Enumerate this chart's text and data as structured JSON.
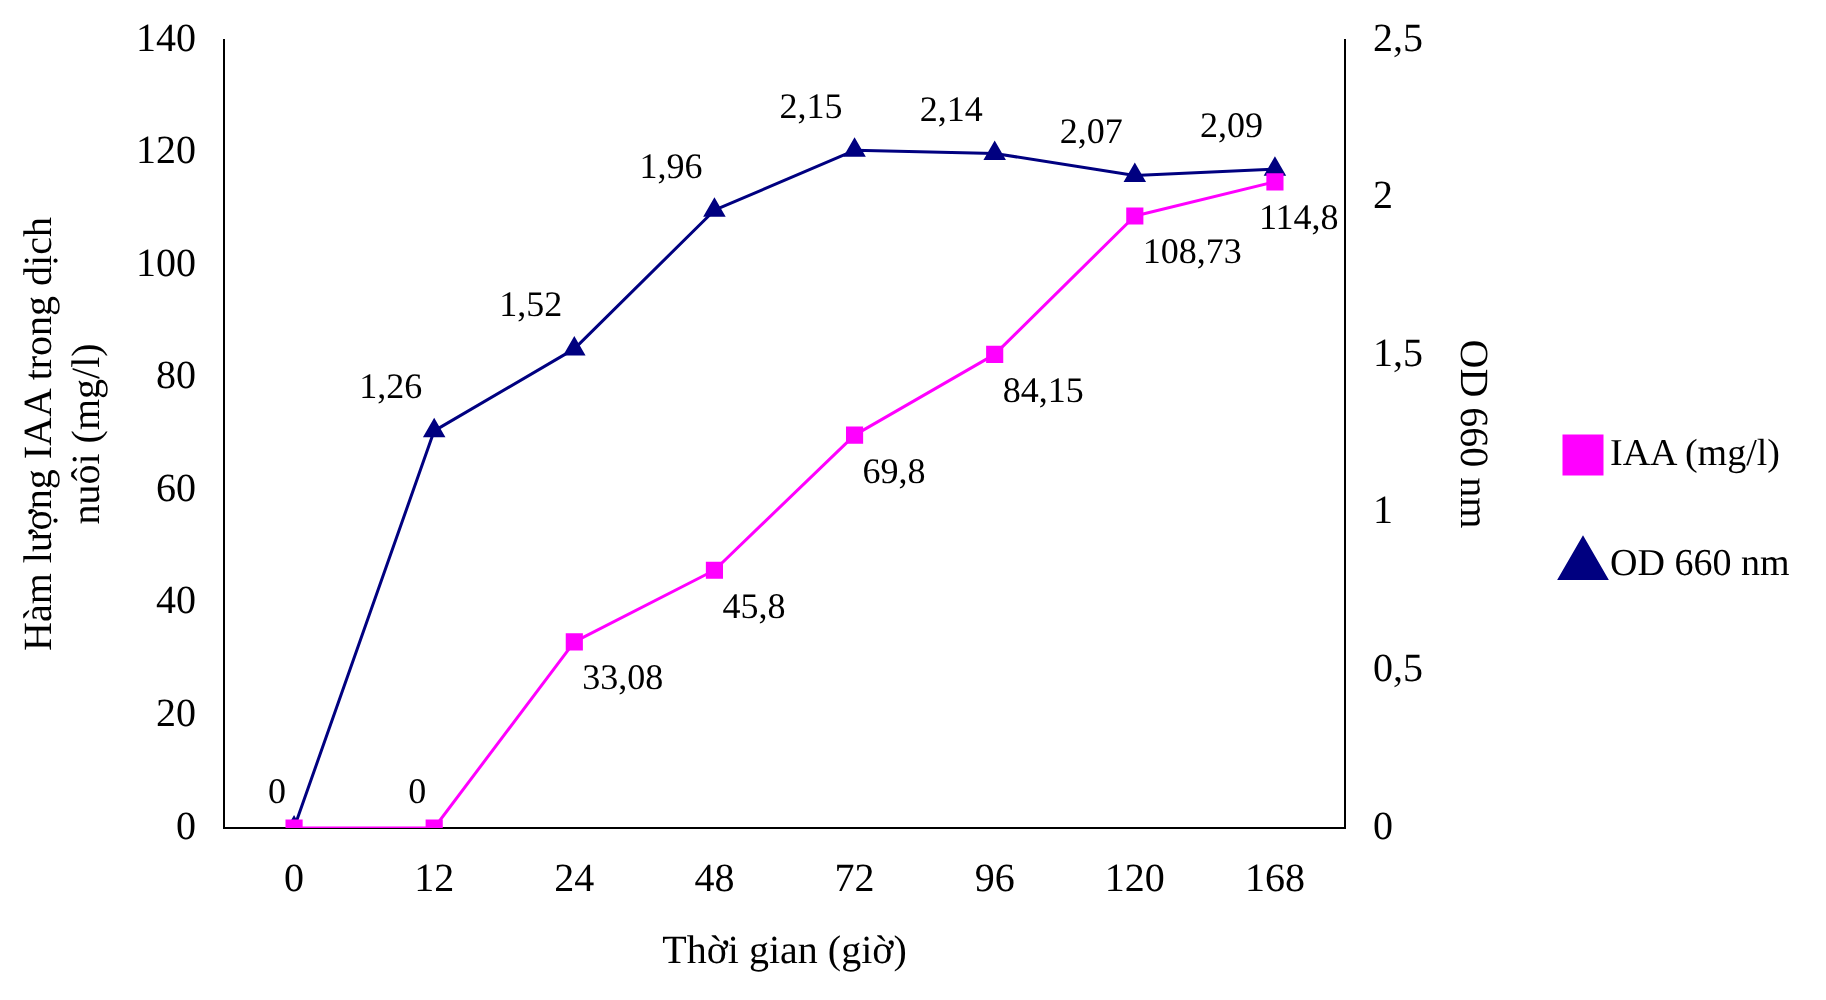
{
  "chart_data": {
    "type": "line",
    "xlabel": "Thời gian (giờ)",
    "ylabel": "Hàm lượng IAA trong dịch nuôi (mg/l)",
    "y2label": "OD 660 nm",
    "categories": [
      "0",
      "12",
      "24",
      "48",
      "72",
      "96",
      "120",
      "168"
    ],
    "series": [
      {
        "name": "IAA (mg/l)",
        "color": "#ff00ff",
        "marker": "square",
        "values": [
          0,
          0,
          33.08,
          45.8,
          69.8,
          84.15,
          108.73,
          114.8
        ],
        "value_labels": [
          "0",
          "0",
          "33,08",
          "45,8",
          "69,8",
          "84,15",
          "108,73",
          "114,8"
        ]
      },
      {
        "name": "OD 660 nm",
        "color": "#000080",
        "marker": "triangle",
        "axis": "y2",
        "values": [
          0,
          1.26,
          1.52,
          1.96,
          2.15,
          2.14,
          2.07,
          2.09
        ],
        "value_labels": [
          null,
          "1,26",
          "1,52",
          "1,96",
          "2,15",
          "2,14",
          "2,07",
          "2,09"
        ]
      }
    ],
    "ylim": [
      0,
      140
    ],
    "yticks": [
      0,
      20,
      40,
      60,
      80,
      100,
      120,
      140
    ],
    "y2lim": [
      0,
      2.5
    ],
    "y2ticks": [
      0,
      {
        "value": 0.5,
        "label": "0,5"
      },
      1,
      {
        "value": 1.5,
        "label": "1,5"
      },
      2,
      {
        "value": 2.5,
        "label": "2,5"
      }
    ],
    "grid": false,
    "legend": "right"
  }
}
